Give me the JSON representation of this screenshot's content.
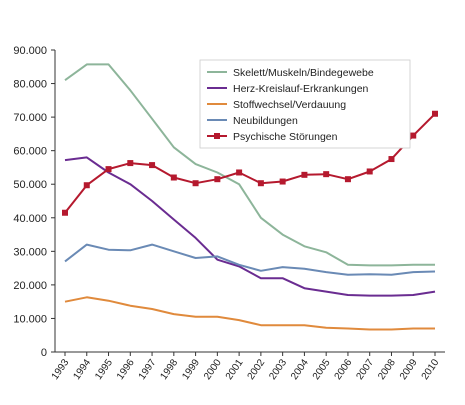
{
  "chart_data": {
    "type": "line",
    "title": "",
    "xlabel": "",
    "ylabel": "",
    "x": [
      "1993",
      "1994",
      "1995",
      "1996",
      "1997",
      "1998",
      "1999",
      "2000",
      "2001",
      "2002",
      "2003",
      "2004",
      "2005",
      "2006",
      "2007",
      "2008",
      "2009",
      "2010"
    ],
    "y_ticks": [
      "0",
      "10.000",
      "20.000",
      "30.000",
      "40.000",
      "50.000",
      "60.000",
      "70.000",
      "80.000",
      "90.000"
    ],
    "ylim": [
      0,
      90000
    ],
    "grid": false,
    "legend_position": "top-right",
    "series": [
      {
        "name": "Skelett/Muskeln/Bindegewebe",
        "color": "#8db59a",
        "marker": "none",
        "values": [
          81000,
          85700,
          85700,
          78000,
          69500,
          61000,
          56000,
          53500,
          50000,
          40000,
          35000,
          31500,
          29700,
          26000,
          25800,
          25800,
          26000,
          26000
        ]
      },
      {
        "name": "Herz-Kreislauf-Erkrankungen",
        "color": "#6a2c91",
        "marker": "none",
        "values": [
          57200,
          58000,
          53500,
          50000,
          45000,
          39500,
          34000,
          27500,
          25500,
          22000,
          22000,
          19000,
          18000,
          17000,
          16800,
          16800,
          17000,
          18000
        ]
      },
      {
        "name": "Stoffwechsel/Verdauung",
        "color": "#e08a3c",
        "marker": "none",
        "values": [
          15000,
          16300,
          15300,
          13800,
          12800,
          11300,
          10500,
          10500,
          9500,
          8000,
          8000,
          8000,
          7200,
          7000,
          6700,
          6700,
          7000,
          7000
        ]
      },
      {
        "name": "Neubildungen",
        "color": "#6a8ab5",
        "marker": "none",
        "values": [
          27000,
          32000,
          30500,
          30300,
          32000,
          30000,
          28000,
          28500,
          26000,
          24200,
          25300,
          24800,
          23800,
          23000,
          23200,
          23000,
          23800,
          24000
        ]
      },
      {
        "name": "Psychische Störungen",
        "color": "#b5192e",
        "marker": "square",
        "values": [
          41500,
          49700,
          54500,
          56300,
          55700,
          52000,
          50300,
          51500,
          53500,
          50300,
          50800,
          52800,
          53000,
          51500,
          53800,
          57500,
          64500,
          71000
        ]
      }
    ]
  }
}
